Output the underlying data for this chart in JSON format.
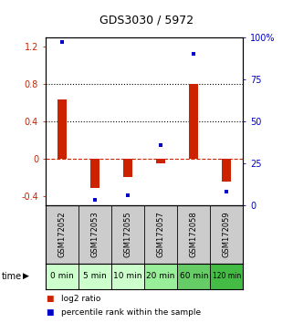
{
  "title": "GDS3030 / 5972",
  "categories": [
    "GSM172052",
    "GSM172053",
    "GSM172055",
    "GSM172057",
    "GSM172058",
    "GSM172059"
  ],
  "time_labels": [
    "0 min",
    "5 min",
    "10 min",
    "20 min",
    "60 min",
    "120 min"
  ],
  "log2_ratio": [
    0.63,
    -0.32,
    -0.2,
    -0.05,
    0.8,
    -0.25
  ],
  "percentile_rank_pct": [
    97,
    3,
    6,
    36,
    90,
    8
  ],
  "bar_color": "#cc2200",
  "dot_color": "#0000cc",
  "ylim": [
    -0.5,
    1.3
  ],
  "y2lim": [
    0,
    100
  ],
  "yticks": [
    -0.4,
    0.0,
    0.4,
    0.8,
    1.2
  ],
  "ytick_labels": [
    "-0.4",
    "0",
    "0.4",
    "0.8",
    "1.2"
  ],
  "y2ticks": [
    0,
    25,
    50,
    75,
    100
  ],
  "y2tick_labels": [
    "0",
    "25",
    "50",
    "75",
    "100%"
  ],
  "hline_dotted": [
    0.4,
    0.8
  ],
  "bg_color": "#ffffff",
  "time_bg_colors": [
    "#ccffcc",
    "#ccffcc",
    "#ccffcc",
    "#99ee99",
    "#66cc66",
    "#44bb44"
  ],
  "gsm_bg_color": "#cccccc",
  "zero_line_color": "#cc2200",
  "legend_label1": "log2 ratio",
  "legend_label2": "percentile rank within the sample"
}
